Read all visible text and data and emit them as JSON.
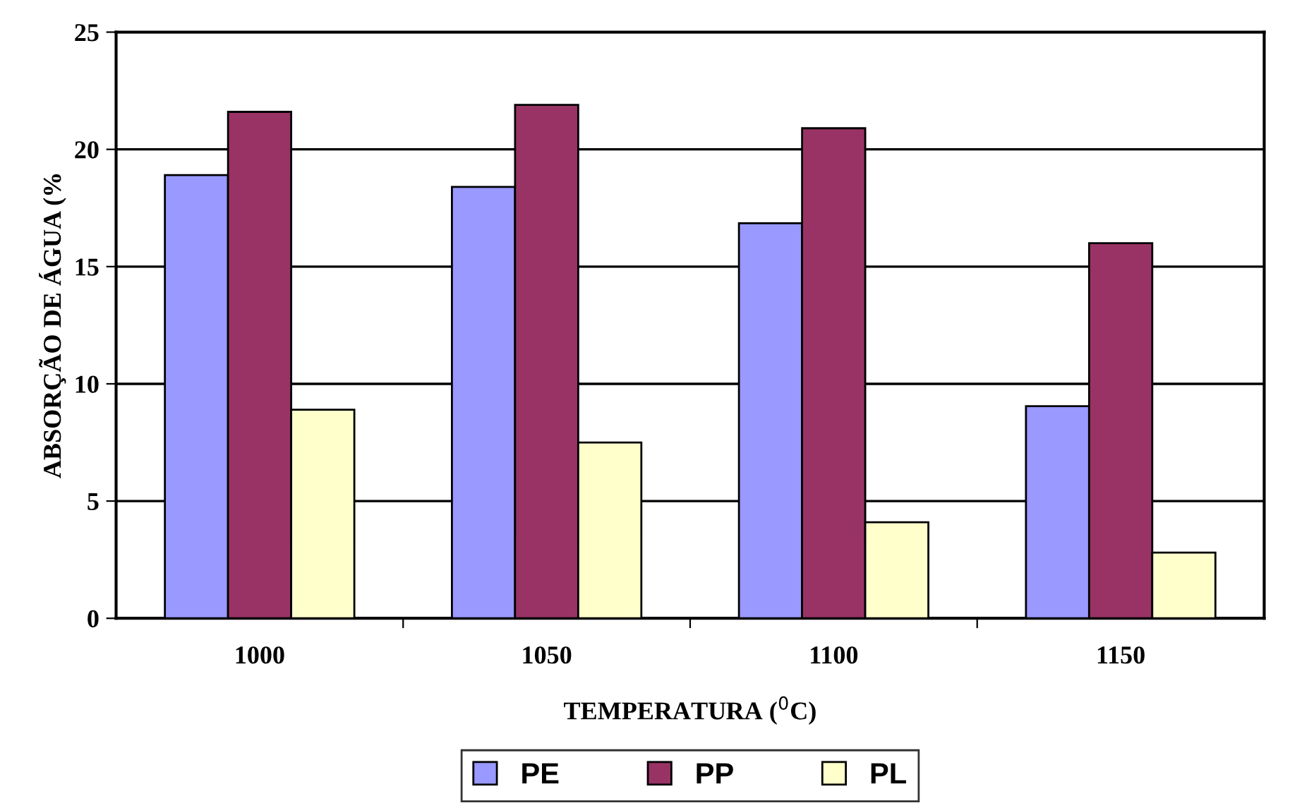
{
  "chart_data": {
    "type": "bar",
    "xlabel": "TEMPERATURA ($^{0}$C)",
    "ylabel": "ABSORÇÃO DE ÁGUA (%",
    "categories": [
      "1000",
      "1050",
      "1100",
      "1150"
    ],
    "series": [
      {
        "name": "PE",
        "color": "#9999ff",
        "values": [
          18.9,
          18.4,
          16.85,
          9.05
        ]
      },
      {
        "name": "PP",
        "color": "#993366",
        "values": [
          21.6,
          21.9,
          20.9,
          16.0
        ]
      },
      {
        "name": "PL",
        "color": "#ffffcc",
        "values": [
          8.9,
          7.5,
          4.1,
          2.8
        ]
      }
    ],
    "ylim": [
      0,
      25
    ],
    "yticks": [
      0,
      5,
      10,
      15,
      20,
      25
    ],
    "grid": "y",
    "legend": "bottom"
  }
}
